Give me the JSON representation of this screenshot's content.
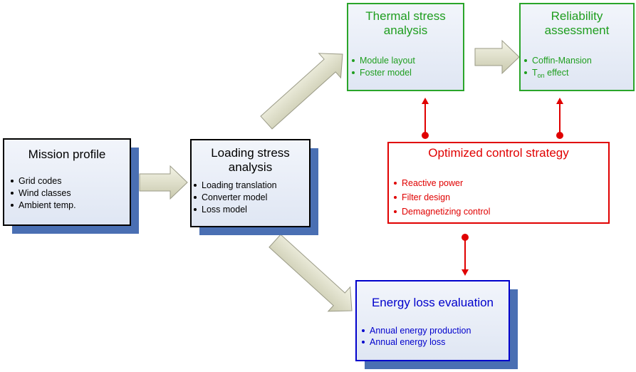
{
  "boxes": {
    "mission": {
      "title": [
        "Mission profile"
      ],
      "items": [
        "Grid codes",
        "Wind classes",
        "Ambient temp."
      ]
    },
    "loading": {
      "title": [
        "Loading stress",
        "analysis"
      ],
      "items": [
        "Loading translation",
        "Converter model",
        "Loss model"
      ]
    },
    "thermal": {
      "title": [
        "Thermal stress",
        "analysis"
      ],
      "items": [
        "Module layout",
        "Foster model"
      ]
    },
    "reliability": {
      "title": [
        "Reliability",
        "assessment"
      ],
      "items": [
        "Coffin-Mansion"
      ],
      "ton_item": {
        "main": "T",
        "sub": "on",
        "rest": " effect"
      }
    },
    "control": {
      "title": [
        "Optimized control strategy"
      ],
      "items": [
        "Reactive power",
        "Filter design",
        "Demagnetizing control"
      ]
    },
    "energy": {
      "title": [
        "Energy loss evaluation"
      ],
      "items": [
        "Annual energy production",
        "Annual energy loss"
      ]
    }
  }
}
